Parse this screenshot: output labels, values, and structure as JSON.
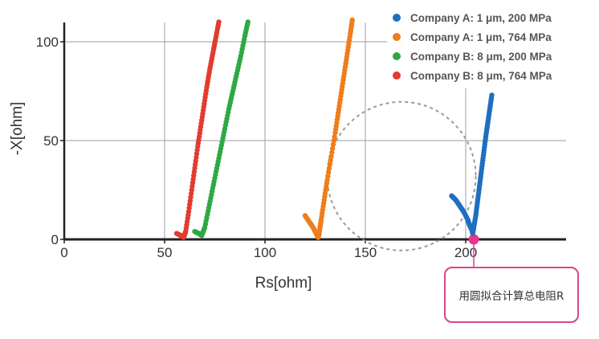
{
  "chart_data": {
    "type": "scatter",
    "title": "",
    "xlabel": "Rs[ohm]",
    "ylabel": "-X[ohm]",
    "xlim": [
      0,
      250
    ],
    "ylim": [
      0,
      110
    ],
    "x_ticks": [
      0,
      50,
      100,
      150,
      200
    ],
    "y_ticks": [
      0,
      50,
      100
    ],
    "grid": true,
    "legend_position": "top-right",
    "series": [
      {
        "name": "Company A: 1 μm, 200 MPa",
        "color": "#1f6fc0",
        "x": [
          193,
          195,
          197,
          199,
          201,
          202,
          203,
          203.5,
          204,
          205,
          206,
          207,
          208,
          209,
          210,
          211,
          212,
          213
        ],
        "y": [
          22,
          20,
          17,
          14,
          10,
          7,
          5,
          3,
          6,
          12,
          20,
          28,
          36,
          44,
          52,
          59,
          66,
          73
        ]
      },
      {
        "name": "Company A: 1 μm, 764 MPa",
        "color": "#ef7d1a",
        "x": [
          120,
          122,
          124,
          125.5,
          126.5,
          127,
          128,
          129.5,
          131,
          133,
          135,
          136.5,
          138,
          139.5,
          141,
          142.5,
          143.5
        ],
        "y": [
          12,
          9,
          6,
          3,
          1,
          3,
          10,
          20,
          30,
          42,
          54,
          64,
          74,
          84,
          94,
          104,
          111
        ]
      },
      {
        "name": "Company B: 8 μm, 200 MPa",
        "color": "#2ea844",
        "x": [
          65,
          67,
          68.5,
          70,
          72,
          74,
          76,
          78,
          80,
          82,
          84,
          86,
          88,
          90,
          91.5
        ],
        "y": [
          4,
          3,
          2,
          6,
          16,
          26,
          36,
          46,
          56,
          66,
          75,
          84,
          93,
          103,
          110
        ]
      },
      {
        "name": "Company B: 8 μm, 764 MPa",
        "color": "#e23b30",
        "x": [
          56,
          58,
          59.5,
          60.5,
          62,
          63.5,
          65,
          66.5,
          68,
          69.5,
          71,
          72.5,
          74,
          75.5,
          77
        ],
        "y": [
          3,
          2,
          1,
          4,
          14,
          25,
          36,
          47,
          57,
          67,
          77,
          86,
          94,
          102,
          110
        ]
      }
    ],
    "annotation": {
      "text": "用圆拟合计算总电阻R",
      "marker_x": 204,
      "marker_y": 0,
      "marker_color": "#e8368f",
      "circle_center_x": 168,
      "circle_center_y": 32,
      "circle_radius_x": 37,
      "circle_style": "dashed",
      "circle_color": "#9a9a9a"
    }
  }
}
